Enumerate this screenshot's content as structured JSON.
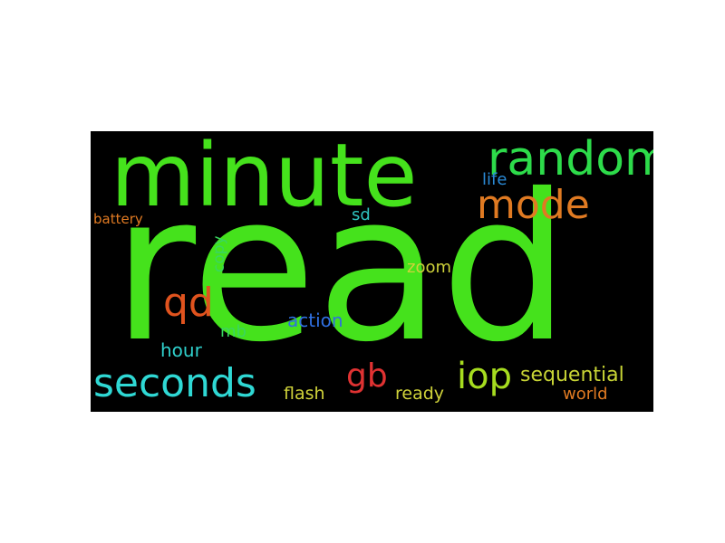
{
  "background_color": "#000000",
  "words": {
    "read": {
      "text": "read",
      "color": "#45e21c"
    },
    "minute": {
      "text": "minute",
      "color": "#45e21c"
    },
    "random": {
      "text": "random",
      "color": "#2ddb4a"
    },
    "mode": {
      "text": "mode",
      "color": "#e07a22"
    },
    "life": {
      "text": "life",
      "color": "#2a8ad6"
    },
    "sd": {
      "text": "sd",
      "color": "#2fc4c0"
    },
    "battery": {
      "text": "battery",
      "color": "#e07a22"
    },
    "copy": {
      "text": "copy",
      "color": "#3ad660"
    },
    "zoom": {
      "text": "zoom",
      "color": "#cfd23a"
    },
    "qd": {
      "text": "qd",
      "color": "#e0531e"
    },
    "action": {
      "text": "action",
      "color": "#2f6fe0"
    },
    "mb": {
      "text": "mb",
      "color": "#3ad660"
    },
    "hour": {
      "text": "hour",
      "color": "#2fd0cc"
    },
    "seconds": {
      "text": "seconds",
      "color": "#2fd8d4"
    },
    "gb": {
      "text": "gb",
      "color": "#e03232"
    },
    "iop": {
      "text": "iop",
      "color": "#a6dc1f"
    },
    "sequential": {
      "text": "sequential",
      "color": "#c8d435"
    },
    "flash": {
      "text": "flash",
      "color": "#cfd23a"
    },
    "ready": {
      "text": "ready",
      "color": "#cfd23a"
    },
    "world": {
      "text": "world",
      "color": "#e07a22"
    }
  }
}
